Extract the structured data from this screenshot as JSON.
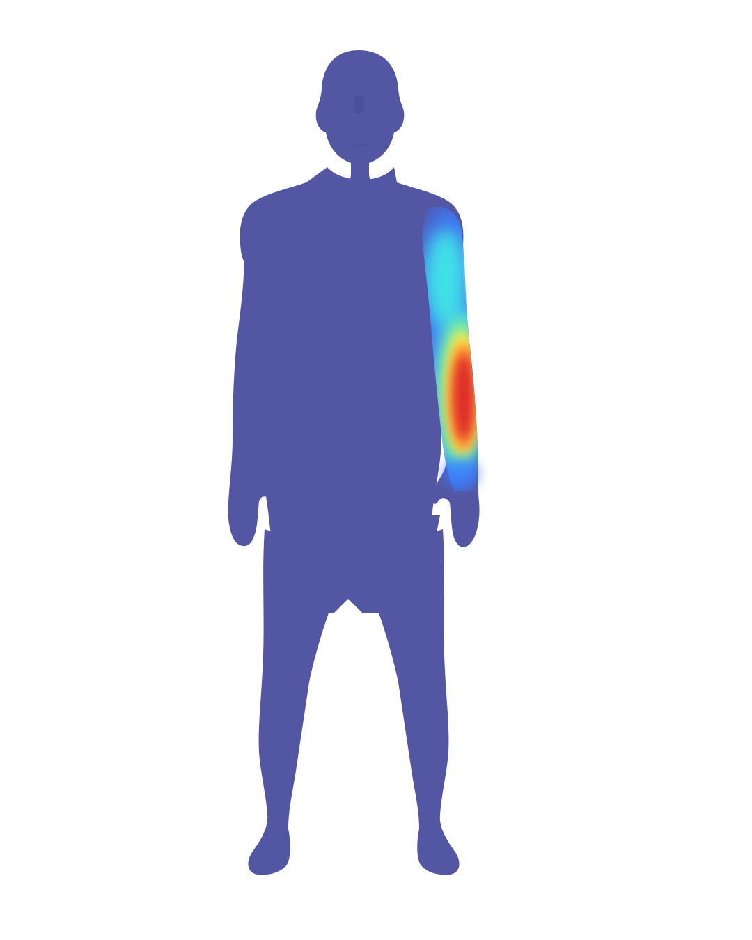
{
  "figure": {
    "subject": "human-body-mesh",
    "pose": "standing-front",
    "colors": {
      "background": "#ffffff",
      "body": "#5356a3",
      "body_shade": "#4a4d9a"
    },
    "heatmap": {
      "region": "left-arm-forearm",
      "colormap": "jet",
      "peak_intensity": 1.0,
      "stops": [
        {
          "value": 0.0,
          "color": "#5356a3"
        },
        {
          "value": 0.25,
          "color": "#3d7cff"
        },
        {
          "value": 0.45,
          "color": "#3fe0e6"
        },
        {
          "value": 0.6,
          "color": "#9ef07a"
        },
        {
          "value": 0.75,
          "color": "#ffe84a"
        },
        {
          "value": 0.88,
          "color": "#ff8c2e"
        },
        {
          "value": 1.0,
          "color": "#dd2a2a"
        }
      ]
    }
  }
}
